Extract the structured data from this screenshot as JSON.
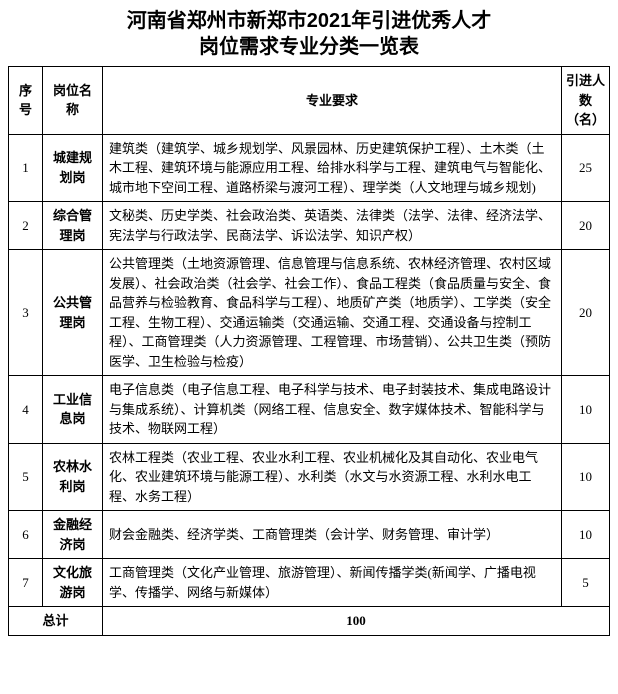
{
  "title_line1": "河南省郑州市新郑市2021年引进优秀人才",
  "title_line2": "岗位需求专业分类一览表",
  "columns": {
    "idx": "序号",
    "pos": "岗位名称",
    "req": "专业要求",
    "cnt": "引进人数（名）"
  },
  "rows": [
    {
      "idx": "1",
      "pos": "城建规划岗",
      "req": "建筑类（建筑学、城乡规划学、风景园林、历史建筑保护工程）、土木类（土木工程、建筑环境与能源应用工程、给排水科学与工程、建筑电气与智能化、城市地下空间工程、道路桥梁与渡河工程）、理学类（人文地理与城乡规划)",
      "cnt": "25"
    },
    {
      "idx": "2",
      "pos": "综合管理岗",
      "req": "文秘类、历史学类、社会政治类、英语类、法律类（法学、法律、经济法学、宪法学与行政法学、民商法学、诉讼法学、知识产权）",
      "cnt": "20"
    },
    {
      "idx": "3",
      "pos": "公共管理岗",
      "req": "公共管理类（土地资源管理、信息管理与信息系统、农林经济管理、农村区域发展）、社会政治类（社会学、社会工作）、食品工程类（食品质量与安全、食品营养与检验教育、食品科学与工程）、地质矿产类（地质学）、工学类（安全工程、生物工程）、交通运输类（交通运输、交通工程、交通设备与控制工程）、工商管理类（人力资源管理、工程管理、市场营销）、公共卫生类（预防医学、卫生检验与检疫）",
      "cnt": "20"
    },
    {
      "idx": "4",
      "pos": "工业信息岗",
      "req": "电子信息类（电子信息工程、电子科学与技术、电子封装技术、集成电路设计与集成系统）、计算机类（网络工程、信息安全、数字媒体技术、智能科学与技术、物联网工程）",
      "cnt": "10"
    },
    {
      "idx": "5",
      "pos": "农林水利岗",
      "req": "农林工程类（农业工程、农业水利工程、农业机械化及其自动化、农业电气化、农业建筑环境与能源工程）、水利类（水文与水资源工程、水利水电工程、水务工程）",
      "cnt": "10"
    },
    {
      "idx": "6",
      "pos": "金融经济岗",
      "req": "财会金融类、经济学类、工商管理类（会计学、财务管理、审计学）",
      "cnt": "10"
    },
    {
      "idx": "7",
      "pos": "文化旅游岗",
      "req": "工商管理类（文化产业管理、旅游管理）、新闻传播学类(新闻学、广播电视学、传播学、网络与新媒体）",
      "cnt": "5"
    }
  ],
  "total_label": "总计",
  "total_value": "100"
}
